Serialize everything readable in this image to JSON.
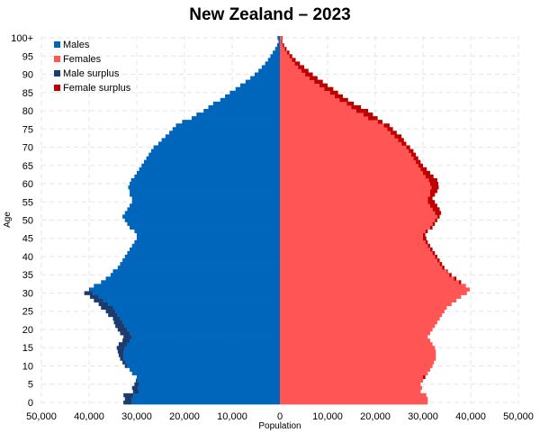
{
  "chart_data": {
    "type": "bar",
    "title": "New Zealand – 2023",
    "xlabel": "Population",
    "ylabel": "Age",
    "xlim": [
      -50000,
      50000
    ],
    "ylim": [
      0,
      100
    ],
    "x_ticks": [
      -50000,
      -40000,
      -30000,
      -20000,
      -10000,
      0,
      10000,
      20000,
      30000,
      40000,
      50000
    ],
    "x_tick_labels": [
      "50,000",
      "40,000",
      "30,000",
      "20,000",
      "10,000",
      "0",
      "10,000",
      "20,000",
      "30,000",
      "40,000",
      "50,000"
    ],
    "y_ticks": [
      0,
      5,
      10,
      15,
      20,
      25,
      30,
      35,
      40,
      45,
      50,
      55,
      60,
      65,
      70,
      75,
      80,
      85,
      90,
      95,
      100
    ],
    "y_tick_labels": [
      "0",
      "5",
      "10",
      "15",
      "20",
      "25",
      "30",
      "35",
      "40",
      "45",
      "50",
      "55",
      "60",
      "65",
      "70",
      "75",
      "80",
      "85",
      "90",
      "95",
      "100+"
    ],
    "grid": true,
    "legend": "top-left",
    "colors": {
      "male": "#0066bb",
      "female": "#ff5555",
      "male_surplus": "#1c3b6e",
      "female_surplus": "#c00000",
      "grid": "#e6e6e6"
    },
    "ages": [
      0,
      1,
      2,
      3,
      4,
      5,
      6,
      7,
      8,
      9,
      10,
      11,
      12,
      13,
      14,
      15,
      16,
      17,
      18,
      19,
      20,
      21,
      22,
      23,
      24,
      25,
      26,
      27,
      28,
      29,
      30,
      31,
      32,
      33,
      34,
      35,
      36,
      37,
      38,
      39,
      40,
      41,
      42,
      43,
      44,
      45,
      46,
      47,
      48,
      49,
      50,
      51,
      52,
      53,
      54,
      55,
      56,
      57,
      58,
      59,
      60,
      61,
      62,
      63,
      64,
      65,
      66,
      67,
      68,
      69,
      70,
      71,
      72,
      73,
      74,
      75,
      76,
      77,
      78,
      79,
      80,
      81,
      82,
      83,
      84,
      85,
      86,
      87,
      88,
      89,
      90,
      91,
      92,
      93,
      94,
      95,
      96,
      97,
      98,
      99,
      100
    ],
    "series": [
      {
        "name": "Males",
        "values": [
          32800,
          32500,
          32800,
          30800,
          31000,
          30500,
          30200,
          30000,
          31000,
          31500,
          32500,
          33000,
          33500,
          33800,
          34000,
          34200,
          33800,
          33000,
          32800,
          33500,
          34000,
          34500,
          34800,
          35000,
          36000,
          36500,
          37500,
          38000,
          39000,
          39800,
          41000,
          40000,
          39000,
          37500,
          36500,
          35500,
          35000,
          34000,
          33500,
          33000,
          32500,
          32000,
          31500,
          31000,
          30500,
          30000,
          30000,
          30500,
          31500,
          32000,
          32500,
          33000,
          32500,
          32000,
          31500,
          31000,
          31000,
          31500,
          31500,
          31800,
          31500,
          31200,
          30500,
          30000,
          29500,
          29000,
          28500,
          28000,
          27500,
          27000,
          26500,
          25500,
          24800,
          24000,
          23200,
          22500,
          21800,
          20500,
          18500,
          17500,
          16000,
          15000,
          14000,
          12500,
          11500,
          10500,
          9300,
          8300,
          7200,
          6200,
          5300,
          4500,
          3800,
          3100,
          2500,
          2000,
          1500,
          1000,
          600,
          300,
          500
        ]
      },
      {
        "name": "Females",
        "values": [
          31000,
          31000,
          30700,
          29500,
          29800,
          29500,
          30000,
          30500,
          31000,
          31500,
          32000,
          32300,
          32700,
          32700,
          32700,
          32500,
          32000,
          31500,
          31000,
          31500,
          32000,
          32500,
          33000,
          33500,
          34000,
          34500,
          35000,
          36000,
          37000,
          38000,
          39200,
          39800,
          39000,
          38000,
          37000,
          36000,
          35200,
          34500,
          34000,
          33500,
          33000,
          32500,
          32000,
          31500,
          31000,
          30700,
          30500,
          31000,
          32000,
          32500,
          33000,
          33500,
          33800,
          33500,
          33000,
          32500,
          32000,
          32500,
          33000,
          33300,
          33200,
          33000,
          32200,
          31500,
          30800,
          30000,
          29500,
          29000,
          28500,
          28000,
          27300,
          26500,
          26000,
          25500,
          24500,
          23700,
          23000,
          21500,
          20500,
          19500,
          18500,
          17000,
          15500,
          14300,
          13200,
          12200,
          11200,
          10000,
          9000,
          7900,
          6900,
          6000,
          5100,
          4200,
          3300,
          2600,
          2000,
          1400,
          900,
          500,
          600
        ]
      }
    ]
  }
}
